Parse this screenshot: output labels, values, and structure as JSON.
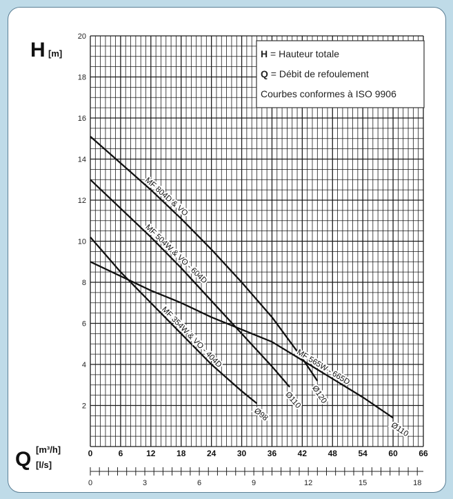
{
  "chart_data": {
    "type": "line",
    "title": "",
    "ylabel": "H",
    "ylabel_unit": "[m]",
    "xlabel": "Q",
    "xlabel_unit_top": "[m³/h]",
    "xlabel_unit_bottom": "[l/s]",
    "ylim": [
      0,
      20
    ],
    "xlim": [
      0,
      66
    ],
    "y_ticks": [
      2,
      4,
      6,
      8,
      10,
      12,
      14,
      16,
      18,
      20
    ],
    "x_ticks_m3h": [
      0,
      6,
      12,
      18,
      24,
      30,
      36,
      42,
      48,
      54,
      60,
      66
    ],
    "x_ticks_ls": [
      0,
      3,
      6,
      9,
      12,
      15,
      18
    ],
    "grid": true,
    "legend": {
      "placement": "top-right",
      "lines": [
        {
          "key": "H",
          "text": " = Hauteur totale"
        },
        {
          "key": "Q",
          "text": " = Débit de refoulement"
        },
        {
          "key": "",
          "text": "Courbes conformes à ISO 9906"
        }
      ]
    },
    "series": [
      {
        "name": "MF 804D & VO",
        "end_label": "Ø120",
        "x": [
          0,
          6,
          12,
          18,
          24,
          30,
          36,
          42,
          45
        ],
        "y": [
          15.1,
          13.8,
          12.5,
          11.1,
          9.6,
          8.0,
          6.3,
          4.3,
          3.2
        ]
      },
      {
        "name": "MF 504W & VO - 604D",
        "end_label": "Ø110",
        "x": [
          0,
          6,
          12,
          18,
          24,
          30,
          36,
          39.5
        ],
        "y": [
          13.0,
          11.6,
          10.2,
          8.7,
          7.1,
          5.5,
          3.9,
          2.9
        ]
      },
      {
        "name": "MF 565W - 665D",
        "end_label": "Ø110",
        "x": [
          0,
          6,
          12,
          18,
          24,
          30,
          36,
          42,
          48,
          54,
          60
        ],
        "y": [
          9.0,
          8.3,
          7.6,
          7.0,
          6.3,
          5.7,
          5.1,
          4.2,
          3.3,
          2.4,
          1.4
        ]
      },
      {
        "name": "MF 354W & VO - 404D",
        "end_label": "Ø98",
        "x": [
          0,
          6,
          12,
          18,
          24,
          30,
          33
        ],
        "y": [
          10.2,
          8.5,
          7.0,
          5.5,
          4.0,
          2.7,
          2.1
        ]
      }
    ]
  }
}
